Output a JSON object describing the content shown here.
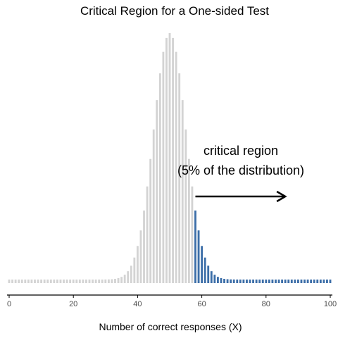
{
  "chart_data": {
    "type": "bar",
    "title": "Critical Region for a One-sided Test",
    "xlabel": "Number of correct responses (X)",
    "ylabel": "",
    "xlim": [
      0,
      100
    ],
    "xticks": [
      0,
      20,
      40,
      60,
      80,
      100
    ],
    "distribution": "binomial",
    "n": 100,
    "p": 0.5,
    "critical_value": 58,
    "colors": {
      "normal": "#d3d3d3",
      "critical": "#3c6ea8",
      "axis": "#000000",
      "tick_text": "#4d4d4d"
    },
    "annotations": [
      {
        "text": "critical region"
      },
      {
        "text": "(5% of the distribution)"
      }
    ],
    "arrow": {
      "from_x": 58,
      "to_x": 86
    },
    "grid": false,
    "legend": "none"
  }
}
